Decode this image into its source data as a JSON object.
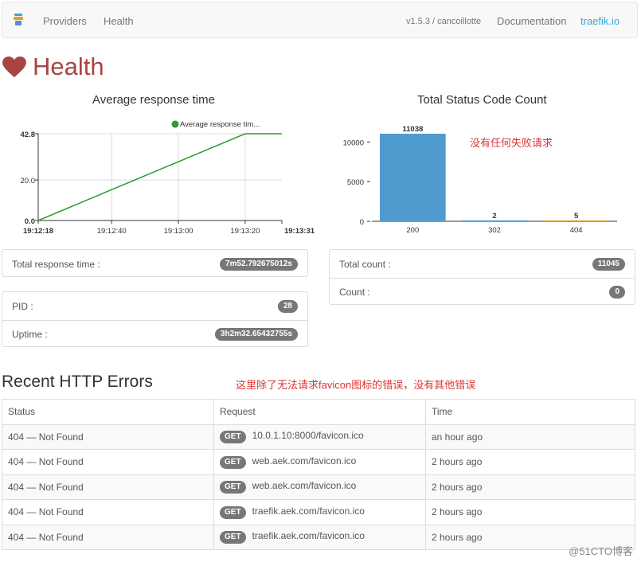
{
  "nav": {
    "items": [
      "Providers",
      "Health"
    ],
    "version": "v1.5.3 / cancoillotte",
    "docs": "Documentation",
    "site": "traefik.io"
  },
  "page": {
    "title": "Health"
  },
  "charts": {
    "response": {
      "title": "Average response time",
      "legend": "Average response tim..."
    },
    "status": {
      "title": "Total Status Code Count",
      "annotation": "没有任何失败请求"
    }
  },
  "chart_data": [
    {
      "type": "line",
      "title": "Average response time",
      "series": [
        {
          "name": "Average response tim...",
          "x": [
            "19:12:18",
            "19:13:20",
            "19:13:31"
          ],
          "values": [
            0.0,
            42.8,
            42.8
          ]
        }
      ],
      "yticks": [
        "0.0",
        "20.0",
        "42.8"
      ],
      "xticks": [
        "19:12:18",
        "19:12:40",
        "19:13:00",
        "19:13:20",
        "19:13:31"
      ],
      "ylim": [
        0,
        42.8
      ],
      "grid": true,
      "legend": "top-right",
      "colors": {
        "line": "#2e9c2e",
        "grid": "#dddddd"
      }
    },
    {
      "type": "bar",
      "title": "Total Status Code Count",
      "categories": [
        "200",
        "302",
        "404"
      ],
      "values": [
        11038,
        2,
        5
      ],
      "yticks": [
        "0",
        "5000",
        "10000"
      ],
      "ylim": [
        0,
        11038
      ],
      "colors": [
        "#4f9bcf",
        "#4f9bcf",
        "#f0a030"
      ]
    }
  ],
  "stats_left_top": [
    {
      "label": "Total response time :",
      "value": "7m52.792675012s"
    }
  ],
  "stats_left_bottom": [
    {
      "label": "PID :",
      "value": "28"
    },
    {
      "label": "Uptime :",
      "value": "3h2m32.65432755s"
    }
  ],
  "stats_right": [
    {
      "label": "Total count :",
      "value": "11045"
    },
    {
      "label": "Count :",
      "value": "0"
    }
  ],
  "errors": {
    "title": "Recent HTTP Errors",
    "annotation": "这里除了无法请求favicon图标的错误，没有其他错误",
    "columns": [
      "Status",
      "Request",
      "Time"
    ],
    "rows": [
      {
        "status": "404 — Not Found",
        "method": "GET",
        "url": "10.0.1.10:8000/favicon.ico",
        "time": "an hour ago"
      },
      {
        "status": "404 — Not Found",
        "method": "GET",
        "url": "web.aek.com/favicon.ico",
        "time": "2 hours ago"
      },
      {
        "status": "404 — Not Found",
        "method": "GET",
        "url": "web.aek.com/favicon.ico",
        "time": "2 hours ago"
      },
      {
        "status": "404 — Not Found",
        "method": "GET",
        "url": "traefik.aek.com/favicon.ico",
        "time": "2 hours ago"
      },
      {
        "status": "404 — Not Found",
        "method": "GET",
        "url": "traefik.aek.com/favicon.ico",
        "time": "2 hours ago"
      }
    ]
  },
  "watermark": "@51CTO博客",
  "colors": {
    "accent": "#3aa6d8",
    "heart": "#a94442",
    "badge": "#777777"
  }
}
